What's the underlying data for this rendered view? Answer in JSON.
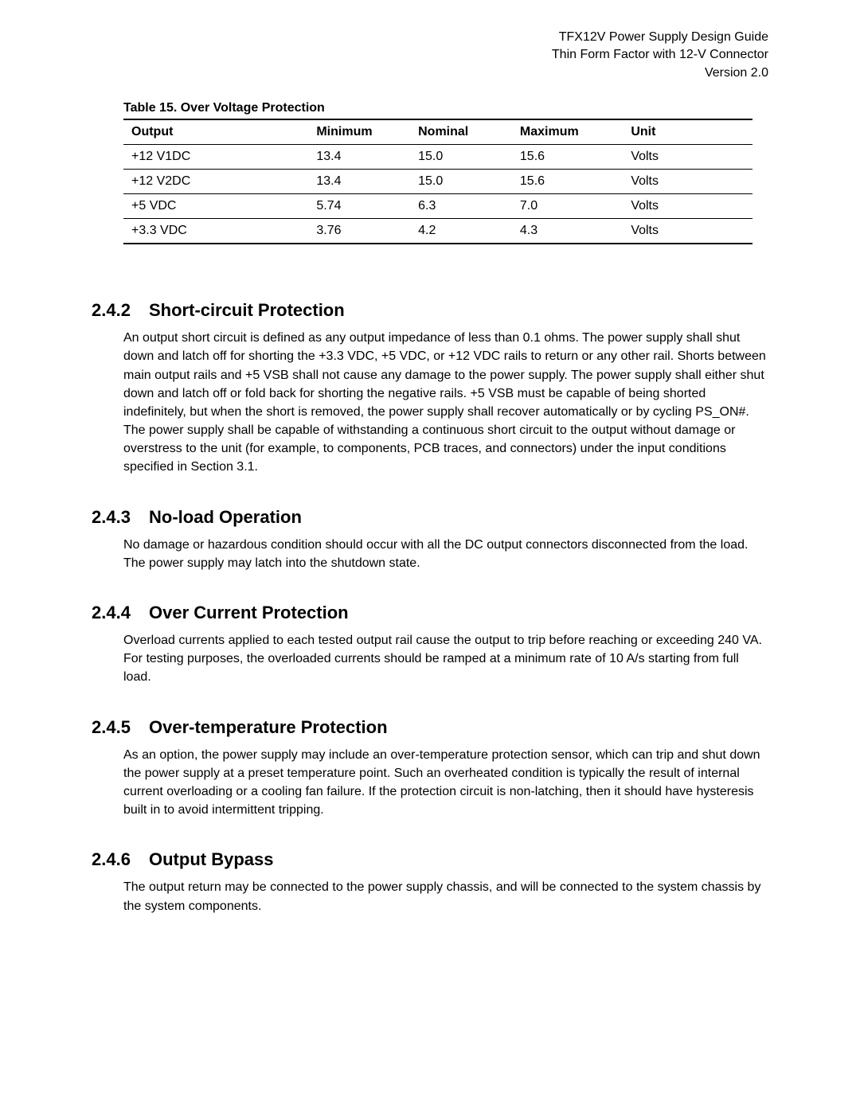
{
  "header": {
    "line1": "TFX12V Power Supply Design Guide",
    "line2": "Thin Form Factor with 12-V Connector",
    "line3": "Version 2.0"
  },
  "table": {
    "caption": "Table 15. Over Voltage Protection",
    "columns": [
      "Output",
      "Minimum",
      "Nominal",
      "Maximum",
      "Unit"
    ],
    "rows": [
      [
        "+12 V1DC",
        "13.4",
        "15.0",
        "15.6",
        "Volts"
      ],
      [
        "+12 V2DC",
        "13.4",
        "15.0",
        "15.6",
        "Volts"
      ],
      [
        "+5 VDC",
        "5.74",
        "6.3",
        "7.0",
        "Volts"
      ],
      [
        "+3.3 VDC",
        "3.76",
        "4.2",
        "4.3",
        "Volts"
      ]
    ]
  },
  "sections": {
    "s242": {
      "num": "2.4.2",
      "title": "Short-circuit Protection",
      "body": "An output short circuit is defined as any output impedance of less than 0.1 ohms.  The power supply shall shut down and latch off for shorting the +3.3 VDC, +5 VDC, or +12 VDC rails to return or any other rail.  Shorts between main output rails and +5 VSB shall not cause any damage to the power supply.  The power supply shall either shut down and latch off or fold back for shorting the negative rails.  +5 VSB must be capable of being shorted indefinitely, but when the short is removed, the power supply shall recover automatically or by cycling PS_ON#.  The power supply shall be capable of withstanding a continuous short circuit to the output without damage or overstress to the unit (for example, to components, PCB traces, and connectors) under the input conditions specified in Section 3.1."
    },
    "s243": {
      "num": "2.4.3",
      "title": "No-load Operation",
      "body": "No damage or hazardous condition should occur with all the DC output connectors disconnected from the load.  The power supply may latch into the shutdown state."
    },
    "s244": {
      "num": "2.4.4",
      "title": "Over Current Protection",
      "body": "Overload currents applied to each tested output rail cause the output to trip before reaching or exceeding 240 VA.  For testing purposes, the overloaded currents should be ramped at a minimum rate of 10 A/s starting from full load."
    },
    "s245": {
      "num": "2.4.5",
      "title": "Over-temperature Protection",
      "body": "As an option, the power supply may include an over-temperature protection sensor, which can trip and shut down the power supply at a preset temperature point.  Such an overheated condition is typically the result of internal current overloading or a cooling fan failure.  If the protection circuit is non-latching, then it should have hysteresis built in to avoid intermittent tripping."
    },
    "s246": {
      "num": "2.4.6",
      "title": "Output Bypass",
      "body": "The output return may be connected to the power supply chassis, and will be connected to the system chassis by the system components."
    }
  }
}
